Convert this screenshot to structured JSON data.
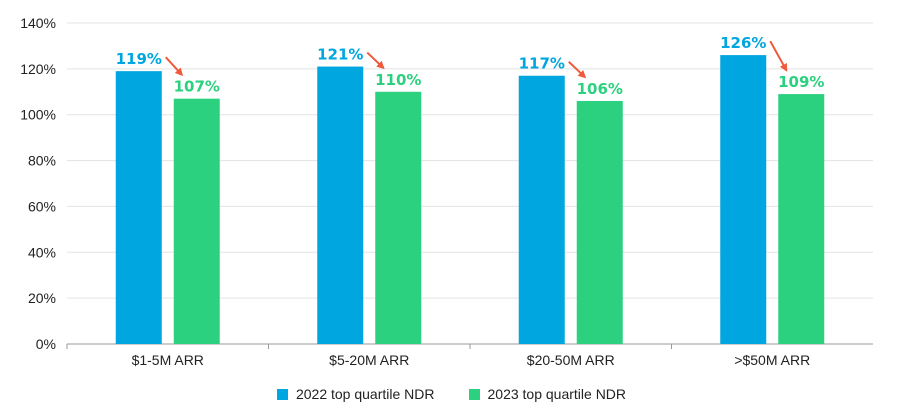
{
  "chart_data": {
    "type": "bar",
    "title": "",
    "xlabel": "",
    "ylabel": "",
    "categories": [
      "$1-5M ARR",
      "$5-20M ARR",
      "$20-50M ARR",
      ">$50M ARR"
    ],
    "series": [
      {
        "name": "2022 top quartile NDR",
        "values": [
          119,
          121,
          117,
          126
        ],
        "color": "#00a6df"
      },
      {
        "name": "2023 top quartile NDR",
        "values": [
          107,
          110,
          106,
          109
        ],
        "color": "#2bd17e"
      }
    ],
    "data_labels": {
      "2022": [
        "119%",
        "121%",
        "117%",
        "126%"
      ],
      "2023": [
        "107%",
        "110%",
        "106%",
        "109%"
      ]
    },
    "ylim": [
      0,
      140
    ],
    "yticks": [
      0,
      20,
      40,
      60,
      80,
      100,
      120,
      140
    ],
    "ytick_labels": [
      "0%",
      "20%",
      "40%",
      "60%",
      "80%",
      "100%",
      "120%",
      "140%"
    ],
    "grid": true,
    "legend_position": "bottom",
    "arrow_color": "#f05a3c"
  }
}
